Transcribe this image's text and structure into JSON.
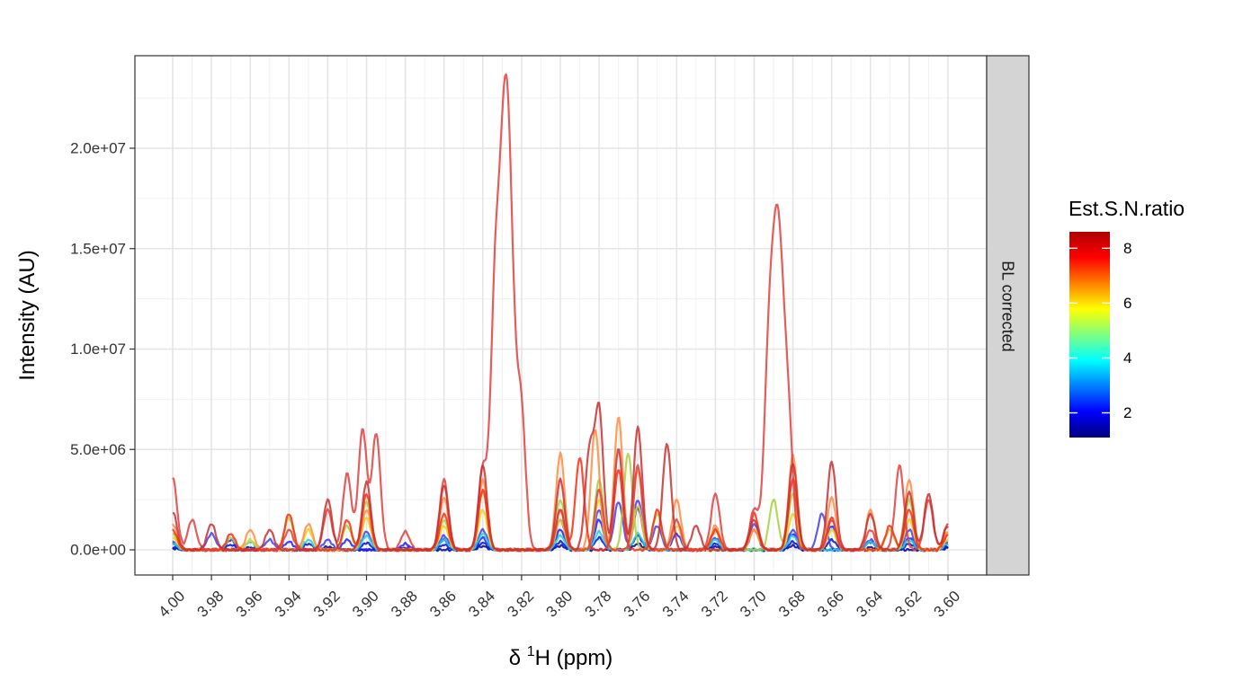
{
  "chart_data": {
    "type": "line",
    "xlabel_prefix": "δ ",
    "xlabel_sup": "1",
    "xlabel_suffix": "H (ppm)",
    "ylabel": "Intensity (AU)",
    "strip_label": "BL corrected",
    "x_reversed": true,
    "xlim": [
      3.6,
      4.0
    ],
    "ylim": [
      -1300000,
      24500000
    ],
    "x_ticks": [
      4.0,
      3.98,
      3.96,
      3.94,
      3.92,
      3.9,
      3.88,
      3.86,
      3.84,
      3.82,
      3.8,
      3.78,
      3.76,
      3.74,
      3.72,
      3.7,
      3.68,
      3.66,
      3.64,
      3.62,
      3.6
    ],
    "x_tick_labels": [
      "4.00",
      "3.98",
      "3.96",
      "3.94",
      "3.92",
      "3.90",
      "3.88",
      "3.86",
      "3.84",
      "3.82",
      "3.80",
      "3.78",
      "3.76",
      "3.74",
      "3.72",
      "3.70",
      "3.68",
      "3.66",
      "3.64",
      "3.62",
      "3.60"
    ],
    "y_ticks": [
      0,
      5000000,
      10000000,
      15000000,
      20000000
    ],
    "y_tick_labels": [
      "0.0e+00",
      "5.0e+06",
      "1.0e+07",
      "1.5e+07",
      "2.0e+07"
    ],
    "legend": {
      "title": "Est.S.N.ratio",
      "range": [
        1.1,
        8.6
      ],
      "ticks": [
        2,
        4,
        6,
        8
      ],
      "tick_labels": [
        "2",
        "4",
        "6",
        "8"
      ],
      "colors": [
        "#00007F",
        "#0000FF",
        "#007FFF",
        "#00FFFF",
        "#7FFF7F",
        "#FFFF00",
        "#FF7F00",
        "#FF0000",
        "#B00000"
      ],
      "position": "right"
    },
    "series": [
      {
        "snr": 8.0,
        "color": "#E04040",
        "peaks": [
          [
            4.0,
            3600000
          ],
          [
            3.99,
            1500000
          ],
          [
            3.94,
            1000000
          ],
          [
            3.92,
            2000000
          ],
          [
            3.91,
            3800000
          ],
          [
            3.902,
            6000000
          ],
          [
            3.895,
            5800000
          ],
          [
            3.88,
            900000
          ],
          [
            3.86,
            3500000
          ],
          [
            3.84,
            4000000
          ],
          [
            3.834,
            9000000
          ],
          [
            3.828,
            23500000
          ],
          [
            3.82,
            6000000
          ],
          [
            3.8,
            2000000
          ],
          [
            3.78,
            3000000
          ],
          [
            3.76,
            4200000
          ],
          [
            3.74,
            1500000
          ],
          [
            3.72,
            2800000
          ],
          [
            3.7,
            2000000
          ],
          [
            3.693,
            5000000
          ],
          [
            3.688,
            16700000
          ],
          [
            3.682,
            4000000
          ],
          [
            3.66,
            1500000
          ],
          [
            3.64,
            1000000
          ],
          [
            3.625,
            4200000
          ],
          [
            3.61,
            2500000
          ],
          [
            3.6,
            1300000
          ]
        ]
      },
      {
        "snr": 8.4,
        "color": "#C83030",
        "peaks": [
          [
            4.0,
            1900000
          ],
          [
            3.98,
            1300000
          ],
          [
            3.95,
            1000000
          ],
          [
            3.92,
            2500000
          ],
          [
            3.9,
            3400000
          ],
          [
            3.86,
            3200000
          ],
          [
            3.84,
            4200000
          ],
          [
            3.8,
            3500000
          ],
          [
            3.785,
            4800000
          ],
          [
            3.78,
            6900000
          ],
          [
            3.77,
            5000000
          ],
          [
            3.76,
            6100000
          ],
          [
            3.745,
            5300000
          ],
          [
            3.73,
            1200000
          ],
          [
            3.7,
            1500000
          ],
          [
            3.68,
            4300000
          ],
          [
            3.66,
            4400000
          ],
          [
            3.64,
            1800000
          ],
          [
            3.62,
            2900000
          ],
          [
            3.61,
            2800000
          ],
          [
            3.6,
            1200000
          ]
        ]
      },
      {
        "snr": 7.0,
        "color": "#FF8C40",
        "peaks": [
          [
            4.0,
            1300000
          ],
          [
            3.96,
            1000000
          ],
          [
            3.93,
            1300000
          ],
          [
            3.9,
            2000000
          ],
          [
            3.86,
            2600000
          ],
          [
            3.84,
            3500000
          ],
          [
            3.8,
            4800000
          ],
          [
            3.782,
            6000000
          ],
          [
            3.77,
            6600000
          ],
          [
            3.76,
            4000000
          ],
          [
            3.74,
            2500000
          ],
          [
            3.72,
            1200000
          ],
          [
            3.7,
            1000000
          ],
          [
            3.68,
            4700000
          ],
          [
            3.66,
            2600000
          ],
          [
            3.64,
            2000000
          ],
          [
            3.62,
            3500000
          ],
          [
            3.6,
            900000
          ]
        ]
      },
      {
        "snr": 7.8,
        "color": "#FF2A10",
        "peaks": [
          [
            4.0,
            1000000
          ],
          [
            3.97,
            800000
          ],
          [
            3.94,
            1800000
          ],
          [
            3.91,
            1500000
          ],
          [
            3.9,
            2800000
          ],
          [
            3.86,
            1800000
          ],
          [
            3.84,
            3000000
          ],
          [
            3.8,
            2000000
          ],
          [
            3.79,
            4600000
          ],
          [
            3.77,
            4000000
          ],
          [
            3.75,
            2000000
          ],
          [
            3.72,
            1000000
          ],
          [
            3.7,
            1800000
          ],
          [
            3.68,
            3500000
          ],
          [
            3.66,
            1600000
          ],
          [
            3.63,
            1200000
          ],
          [
            3.62,
            2000000
          ],
          [
            3.6,
            700000
          ]
        ]
      },
      {
        "snr": 5.2,
        "color": "#A8D040",
        "peaks": [
          [
            4.0,
            800000
          ],
          [
            3.97,
            600000
          ],
          [
            3.94,
            1600000
          ],
          [
            3.91,
            1200000
          ],
          [
            3.9,
            2400000
          ],
          [
            3.86,
            1500000
          ],
          [
            3.84,
            2900000
          ],
          [
            3.8,
            2500000
          ],
          [
            3.78,
            3500000
          ],
          [
            3.765,
            4800000
          ],
          [
            3.75,
            1800000
          ],
          [
            3.72,
            900000
          ],
          [
            3.69,
            2500000
          ],
          [
            3.68,
            2800000
          ],
          [
            3.66,
            1500000
          ],
          [
            3.63,
            1000000
          ],
          [
            3.62,
            2500000
          ],
          [
            3.6,
            800000
          ]
        ]
      },
      {
        "snr": 6.3,
        "color": "#E8D020",
        "peaks": [
          [
            4.0,
            600000
          ],
          [
            3.96,
            500000
          ],
          [
            3.93,
            1000000
          ],
          [
            3.9,
            1600000
          ],
          [
            3.86,
            1200000
          ],
          [
            3.84,
            2000000
          ],
          [
            3.8,
            1500000
          ],
          [
            3.78,
            2500000
          ],
          [
            3.76,
            2200000
          ],
          [
            3.74,
            1200000
          ],
          [
            3.7,
            1000000
          ],
          [
            3.68,
            1800000
          ],
          [
            3.66,
            1000000
          ],
          [
            3.62,
            1500000
          ],
          [
            3.6,
            500000
          ]
        ]
      },
      {
        "snr": 3.1,
        "color": "#4040F0",
        "peaks": [
          [
            4.0,
            400000
          ],
          [
            3.98,
            800000
          ],
          [
            3.95,
            500000
          ],
          [
            3.92,
            500000
          ],
          [
            3.9,
            900000
          ],
          [
            3.86,
            700000
          ],
          [
            3.84,
            1000000
          ],
          [
            3.8,
            1500000
          ],
          [
            3.78,
            2000000
          ],
          [
            3.77,
            2400000
          ],
          [
            3.76,
            2500000
          ],
          [
            3.75,
            1200000
          ],
          [
            3.72,
            600000
          ],
          [
            3.7,
            1300000
          ],
          [
            3.68,
            1000000
          ],
          [
            3.665,
            1800000
          ],
          [
            3.64,
            500000
          ],
          [
            3.62,
            1000000
          ],
          [
            3.6,
            400000
          ]
        ]
      },
      {
        "snr": 2.4,
        "color": "#2020FF",
        "peaks": [
          [
            4.0,
            300000
          ],
          [
            3.97,
            500000
          ],
          [
            3.94,
            400000
          ],
          [
            3.91,
            500000
          ],
          [
            3.88,
            300000
          ],
          [
            3.86,
            500000
          ],
          [
            3.84,
            600000
          ],
          [
            3.8,
            1000000
          ],
          [
            3.78,
            1500000
          ],
          [
            3.76,
            2100000
          ],
          [
            3.74,
            800000
          ],
          [
            3.7,
            1000000
          ],
          [
            3.68,
            800000
          ],
          [
            3.66,
            1200000
          ],
          [
            3.64,
            400000
          ],
          [
            3.62,
            600000
          ],
          [
            3.6,
            300000
          ]
        ]
      },
      {
        "snr": 4.0,
        "color": "#20D0E0",
        "peaks": [
          [
            4.0,
            300000
          ],
          [
            3.96,
            400000
          ],
          [
            3.93,
            500000
          ],
          [
            3.9,
            700000
          ],
          [
            3.86,
            500000
          ],
          [
            3.84,
            800000
          ],
          [
            3.8,
            700000
          ],
          [
            3.78,
            900000
          ],
          [
            3.76,
            800000
          ],
          [
            3.72,
            500000
          ],
          [
            3.68,
            700000
          ],
          [
            3.64,
            400000
          ],
          [
            3.62,
            500000
          ],
          [
            3.6,
            300000
          ]
        ]
      },
      {
        "snr": 1.6,
        "color": "#0010D0",
        "peaks": [
          [
            4.0,
            150000
          ],
          [
            3.97,
            250000
          ],
          [
            3.93,
            300000
          ],
          [
            3.9,
            350000
          ],
          [
            3.86,
            250000
          ],
          [
            3.84,
            350000
          ],
          [
            3.8,
            400000
          ],
          [
            3.78,
            600000
          ],
          [
            3.76,
            700000
          ],
          [
            3.72,
            300000
          ],
          [
            3.68,
            400000
          ],
          [
            3.66,
            500000
          ],
          [
            3.62,
            300000
          ],
          [
            3.6,
            150000
          ]
        ]
      },
      {
        "snr": 1.2,
        "color": "#0000A0",
        "peaks": [
          [
            4.0,
            80000
          ],
          [
            3.96,
            120000
          ],
          [
            3.92,
            150000
          ],
          [
            3.88,
            100000
          ],
          [
            3.84,
            180000
          ],
          [
            3.8,
            200000
          ],
          [
            3.76,
            300000
          ],
          [
            3.72,
            150000
          ],
          [
            3.68,
            200000
          ],
          [
            3.64,
            120000
          ],
          [
            3.6,
            80000
          ]
        ]
      }
    ]
  }
}
